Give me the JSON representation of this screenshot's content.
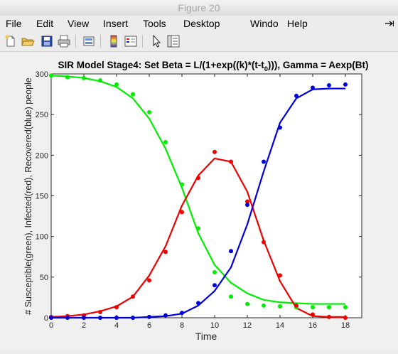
{
  "window": {
    "title": "Figure 20"
  },
  "menu": {
    "items": [
      "File",
      "Edit",
      "View",
      "Insert",
      "Tools",
      "Desktop",
      "Windo",
      "Help"
    ]
  },
  "toolbar": {
    "icons": [
      "new-figure-icon",
      "open-file-icon",
      "save-icon",
      "print-icon",
      "link-plot-icon",
      "insert-colorbar-icon",
      "insert-legend-icon",
      "pointer-icon",
      "property-editor-icon"
    ]
  },
  "colors": {
    "susceptible": "#00ee00",
    "infected": "#ee0000",
    "recovered": "#0000dd"
  },
  "chart_data": {
    "type": "line",
    "title": "SIR Model Stage4: Set Beta = L/(1+exp((k)*(t-t0))), Gamma = Aexp(Bt)",
    "title_parts": {
      "main": "SIR Model Stage4: Set Beta = L/(1+exp((k)*(t-t",
      "sub": "0",
      "tail": "))), Gamma = Aexp(Bt)"
    },
    "xlabel": "Time",
    "ylabel": "# Susceptible(green), Infected(red), Recovered(blue) people",
    "xlim": [
      0,
      19
    ],
    "ylim": [
      0,
      300
    ],
    "xticks": [
      0,
      2,
      4,
      6,
      8,
      10,
      12,
      14,
      16,
      18
    ],
    "yticks": [
      0,
      50,
      100,
      150,
      200,
      250,
      300
    ],
    "grid": false,
    "series": [
      {
        "key": "susceptible",
        "x": [
          0,
          1,
          2,
          3,
          4,
          5,
          6,
          7,
          8,
          9,
          10,
          11,
          12,
          13,
          14,
          15,
          16,
          17,
          18
        ],
        "line": [
          298,
          297,
          295,
          291,
          284,
          270,
          245,
          208,
          160,
          104,
          65,
          43,
          30,
          22,
          19,
          18,
          17,
          17,
          17
        ],
        "points": [
          298,
          296,
          295,
          292,
          287,
          275,
          253,
          216,
          164,
          110,
          56,
          26,
          17,
          15,
          14,
          13,
          13,
          13,
          13
        ]
      },
      {
        "key": "infected",
        "x": [
          0,
          1,
          2,
          3,
          4,
          5,
          6,
          7,
          8,
          9,
          10,
          11,
          12,
          13,
          14,
          15,
          16,
          17,
          18
        ],
        "line": [
          1,
          2,
          4,
          8,
          14,
          26,
          52,
          88,
          138,
          175,
          196,
          192,
          155,
          95,
          45,
          12,
          2,
          1,
          1
        ],
        "points": [
          1,
          2,
          3,
          7,
          13,
          26,
          46,
          81,
          130,
          172,
          204,
          192,
          143,
          93,
          52,
          15,
          4,
          1,
          0
        ]
      },
      {
        "key": "recovered",
        "x": [
          0,
          1,
          2,
          3,
          4,
          5,
          6,
          7,
          8,
          9,
          10,
          11,
          12,
          13,
          14,
          15,
          16,
          17,
          18
        ],
        "line": [
          0,
          0,
          0,
          0,
          0,
          0,
          1,
          2,
          5,
          15,
          33,
          62,
          115,
          180,
          240,
          270,
          281,
          282,
          282
        ],
        "points": [
          0,
          0,
          0,
          0,
          0,
          0,
          1,
          3,
          6,
          18,
          40,
          82,
          139,
          192,
          234,
          273,
          283,
          286,
          287
        ]
      }
    ]
  }
}
